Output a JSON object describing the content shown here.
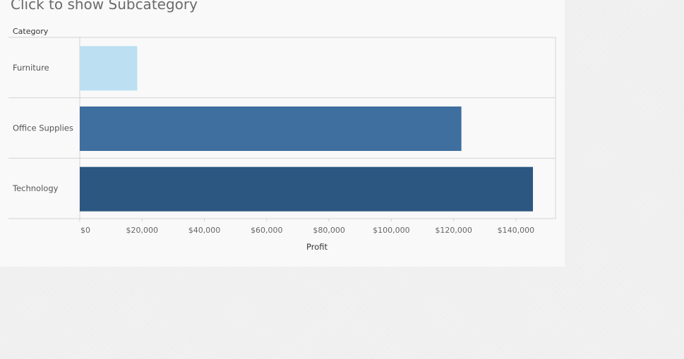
{
  "title": "Click to show Subcategory",
  "chart_data": {
    "type": "bar",
    "orientation": "horizontal",
    "row_header": "Category",
    "categories": [
      "Furniture",
      "Office Supplies",
      "Technology"
    ],
    "values": [
      18451,
      122491,
      145455
    ],
    "colors": [
      "#bcdff2",
      "#3f6f9f",
      "#2b5781"
    ],
    "xlabel": "Profit",
    "xlim": [
      0,
      150000
    ],
    "xticks": [
      0,
      20000,
      40000,
      60000,
      80000,
      100000,
      120000,
      140000
    ],
    "xtick_labels": [
      "$0",
      "$20,000",
      "$40,000",
      "$60,000",
      "$80,000",
      "$100,000",
      "$120,000",
      "$140,000"
    ],
    "grid": false,
    "legend": "none"
  }
}
